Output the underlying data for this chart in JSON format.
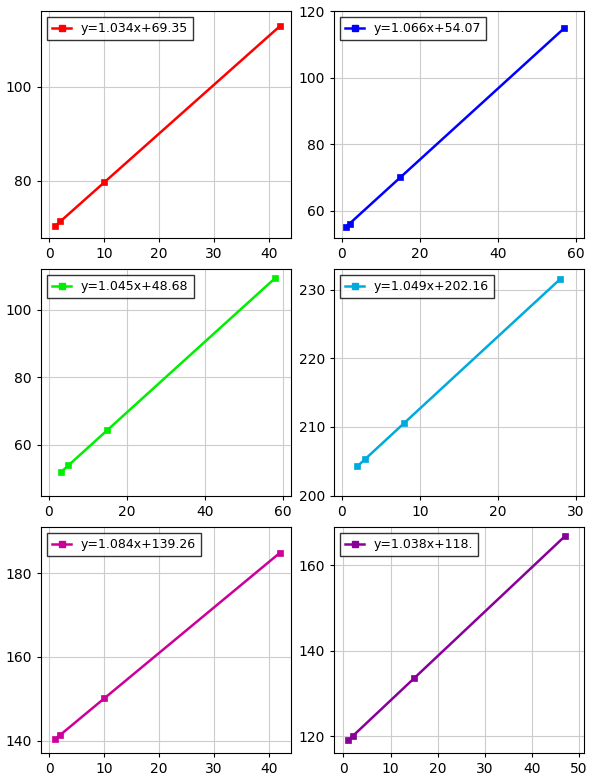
{
  "subplots": [
    {
      "color": "#ff0000",
      "label": "y=1.034x+69.35",
      "slope": 1.034,
      "intercept": 69.35,
      "x_data": [
        1,
        2,
        10,
        42
      ],
      "xlim": [
        -1.5,
        44
      ],
      "ylim": [
        68,
        116
      ],
      "xticks": [
        0,
        10,
        20,
        30,
        40
      ],
      "yticks": [
        80,
        100
      ],
      "show_top_ytick": false
    },
    {
      "color": "#0000ff",
      "label": "y=1.066x+54.07",
      "slope": 1.066,
      "intercept": 54.07,
      "x_data": [
        1,
        2,
        15,
        57
      ],
      "xlim": [
        -2,
        62
      ],
      "ylim": [
        52,
        120
      ],
      "xticks": [
        0,
        20,
        40,
        60
      ],
      "yticks": [
        60,
        80,
        100,
        120
      ],
      "show_top_ytick": true
    },
    {
      "color": "#00ee00",
      "label": "y=1.045x+48.68",
      "slope": 1.045,
      "intercept": 48.68,
      "x_data": [
        3,
        5,
        15,
        58
      ],
      "xlim": [
        -2,
        62
      ],
      "ylim": [
        45,
        112
      ],
      "xticks": [
        0,
        20,
        40,
        60
      ],
      "yticks": [
        60,
        80,
        100
      ],
      "show_top_ytick": false
    },
    {
      "color": "#00aadd",
      "label": "y=1.049x+202.16",
      "slope": 1.049,
      "intercept": 202.16,
      "x_data": [
        2,
        3,
        8,
        28
      ],
      "xlim": [
        -1,
        31
      ],
      "ylim": [
        200,
        233
      ],
      "xticks": [
        0,
        10,
        20,
        30
      ],
      "yticks": [
        200,
        210,
        220,
        230
      ],
      "show_top_ytick": false
    },
    {
      "color": "#cc0099",
      "label": "y=1.084x+139.26",
      "slope": 1.084,
      "intercept": 139.26,
      "x_data": [
        1,
        2,
        10,
        42
      ],
      "xlim": [
        -1.5,
        44
      ],
      "ylim": [
        137,
        191
      ],
      "xticks": [
        0,
        10,
        20,
        30,
        40
      ],
      "yticks": [
        140,
        160,
        180
      ],
      "show_top_ytick": false
    },
    {
      "color": "#880099",
      "label": "y=1.038x+118.",
      "slope": 1.038,
      "intercept": 118.0,
      "x_data": [
        1,
        2,
        15,
        47
      ],
      "xlim": [
        -2,
        51
      ],
      "ylim": [
        116,
        169
      ],
      "xticks": [
        0,
        10,
        20,
        30,
        40,
        50
      ],
      "yticks": [
        120,
        140,
        160
      ],
      "show_top_ytick": false
    }
  ],
  "background_color": "#ffffff",
  "grid_color": "#cccccc",
  "legend_fontsize": 9,
  "tick_fontsize": 10,
  "marker_size": 5
}
